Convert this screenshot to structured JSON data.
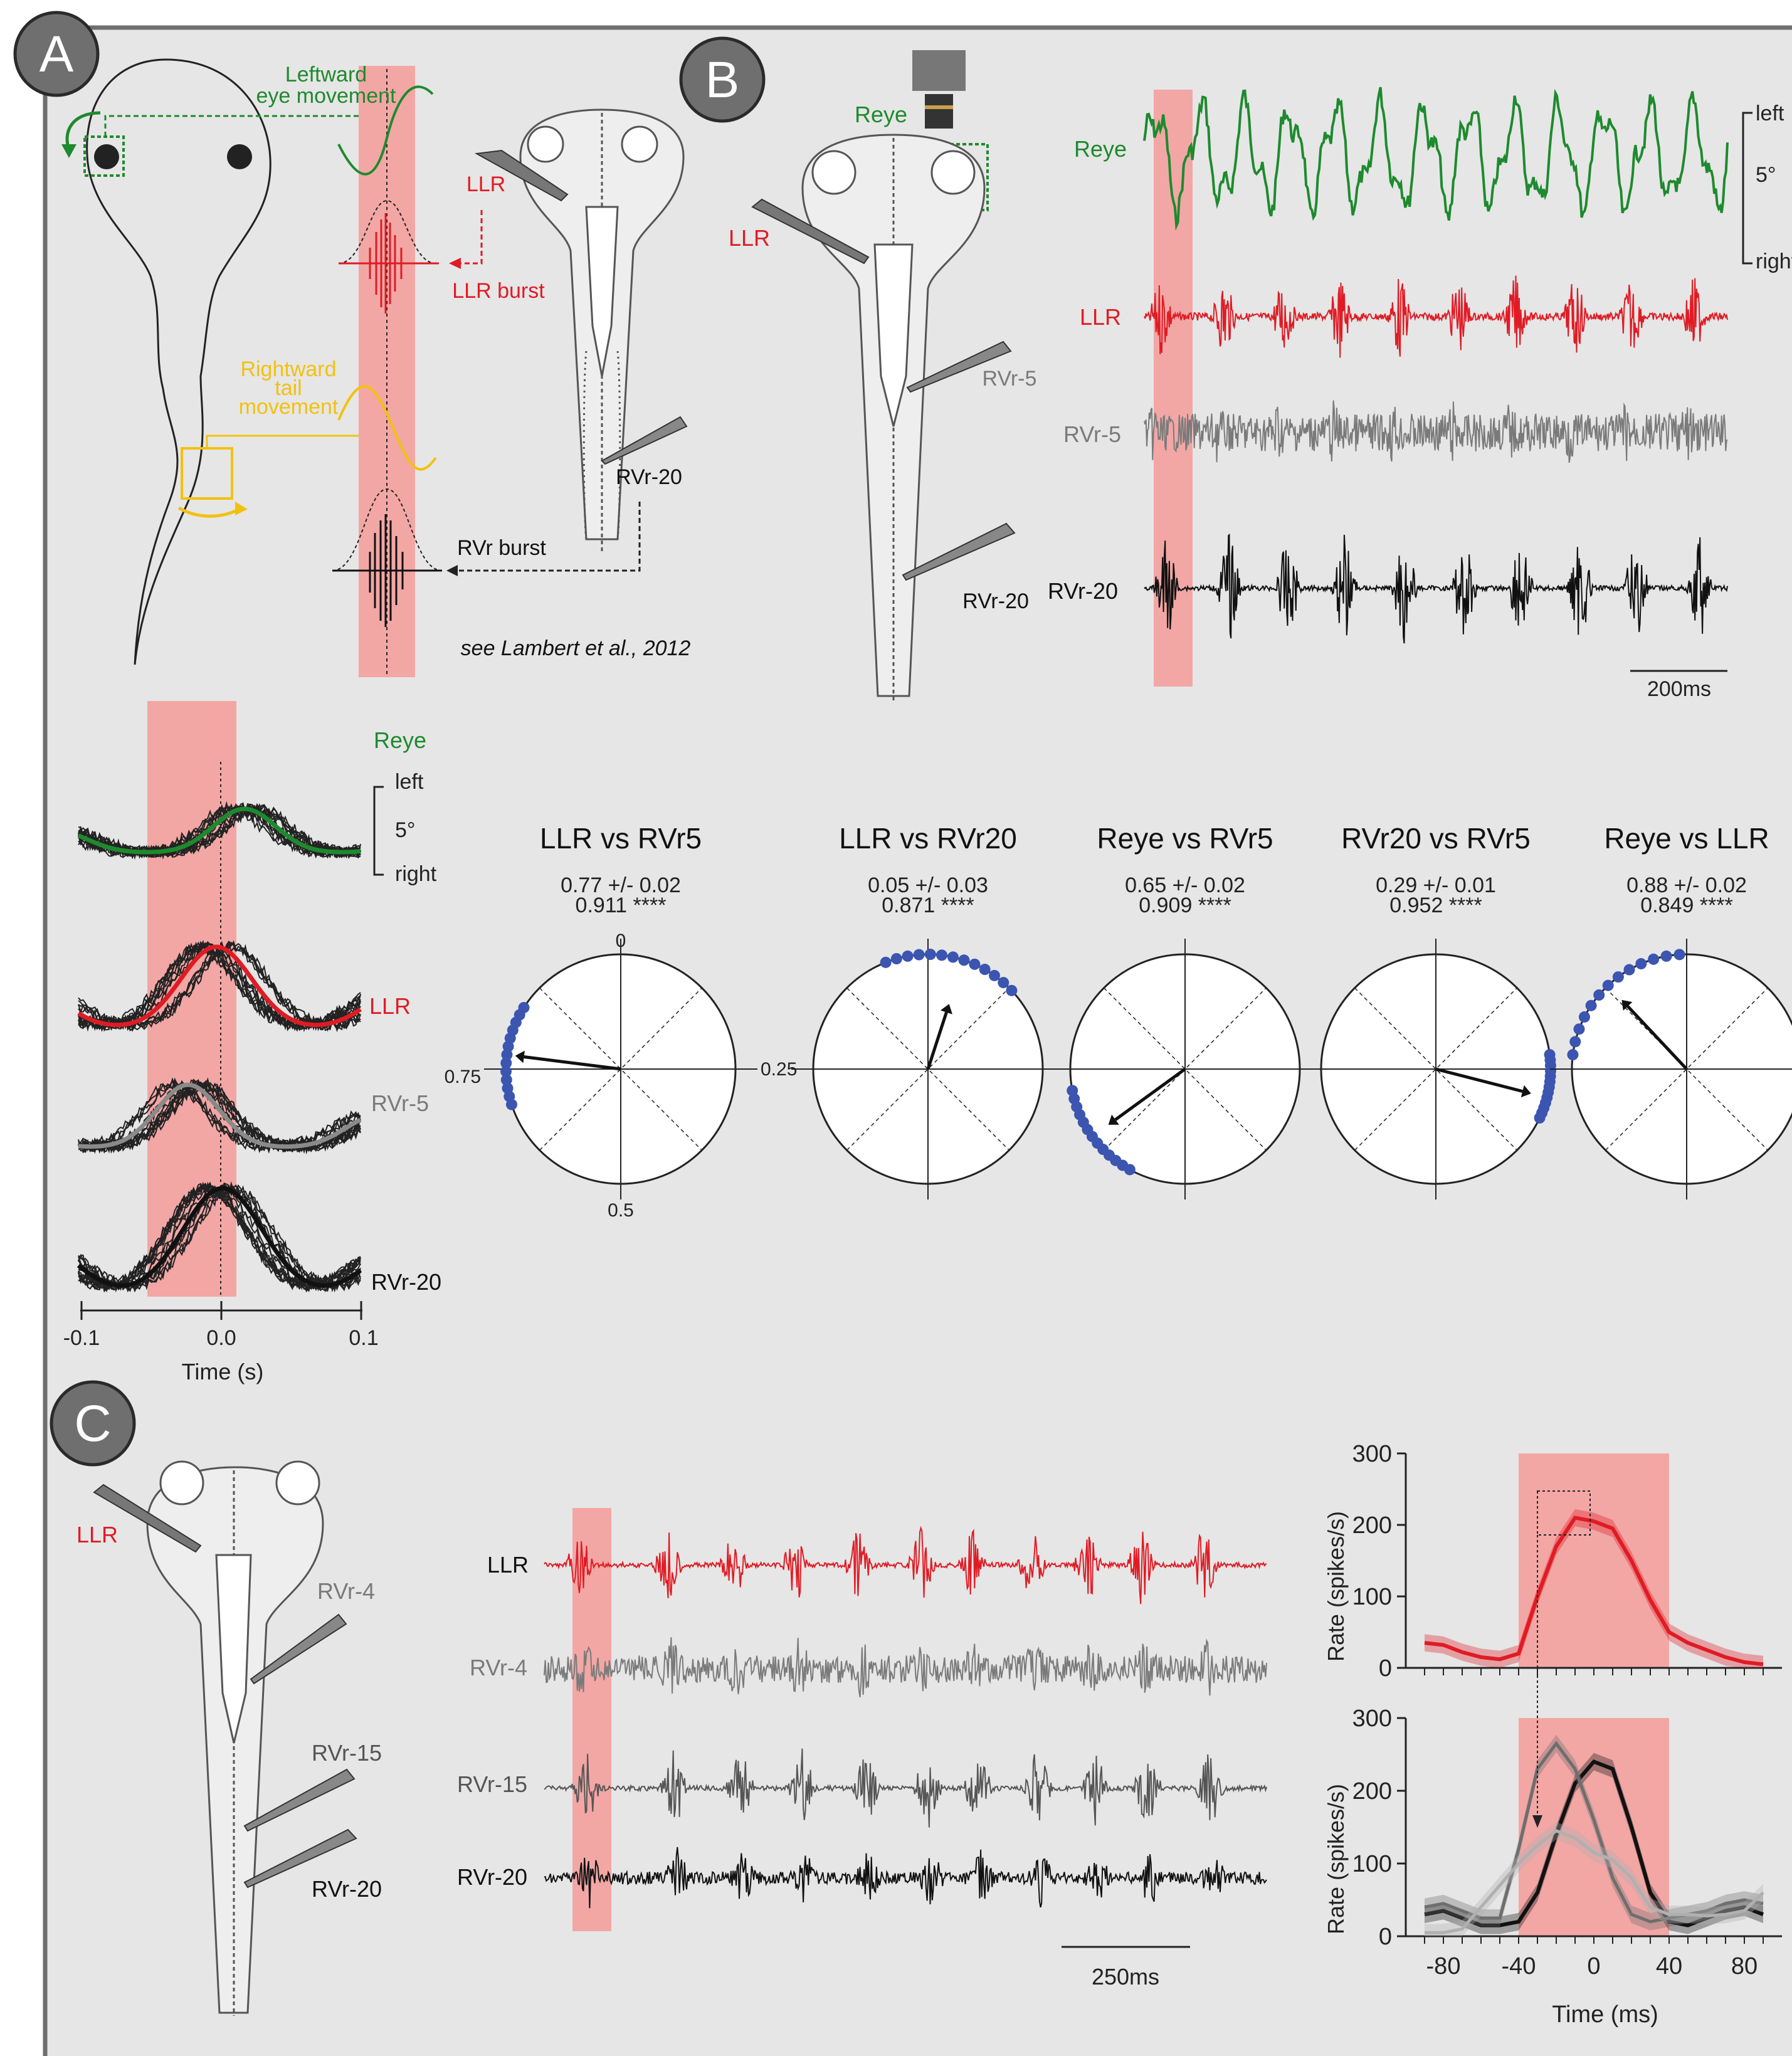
{
  "panels": {
    "a": {
      "label": "A",
      "eye_movement": "Leftward\neye movement",
      "llr": "LLR",
      "llr_burst": "LLR burst",
      "tail_movement": "Rightward\ntail\nmovement",
      "rvr20": "RVr-20",
      "rvr_burst": "RVr burst",
      "citation": "see Lambert et al., 2012"
    },
    "b": {
      "label": "B",
      "reye_cam": "Reye",
      "llr_electrode": "LLR",
      "rvr5_electrode": "RVr-5",
      "rvr20_electrode": "RVr-20",
      "trace_labels": [
        "Reye",
        "LLR",
        "RVr-5",
        "RVr-20"
      ],
      "eye_scale_top": "left",
      "eye_scale_mid": "5°",
      "eye_scale_bottom": "right",
      "scalebar": "200ms"
    },
    "bottom_left": {
      "reye": "Reye",
      "scale_left": "left",
      "scale_5": "5°",
      "scale_right": "right",
      "llr": "LLR",
      "rvr5": "RVr-5",
      "rvr20": "RVr-20",
      "ticks": [
        "-0.1",
        "0.0",
        "0.1"
      ],
      "xlabel": "Time (s)"
    },
    "polar": [
      {
        "title": "LLR vs RVr5",
        "stat1": "0.77 +/- 0.02",
        "stat2": "0.911 ****"
      },
      {
        "title": "LLR vs RVr20",
        "stat1": "0.05 +/- 0.03",
        "stat2": "0.871 ****"
      },
      {
        "title": "Reye vs RVr5",
        "stat1": "0.65 +/- 0.02",
        "stat2": "0.909 ****"
      },
      {
        "title": "RVr20 vs RVr5",
        "stat1": "0.29 +/- 0.01",
        "stat2": "0.952 ****"
      },
      {
        "title": "Reye vs LLR",
        "stat1": "0.88 +/- 0.02",
        "stat2": "0.849 ****"
      }
    ],
    "polar_axis_labels": {
      "top": "0",
      "right": "0.25",
      "bottom": "0.5",
      "left": "0.75"
    },
    "c": {
      "label": "C",
      "llr_electrode": "LLR",
      "rvr4_electrode": "RVr-4",
      "rvr15_electrode": "RVr-15",
      "rvr20_electrode": "RVr-20",
      "trace_labels": [
        "LLR",
        "RVr-4",
        "RVr-15",
        "RVr-20"
      ],
      "scalebar": "250ms",
      "rate_ylabel": "Rate (spikes/s)",
      "time_xlabel": "Time (ms)"
    }
  },
  "colors": {
    "green": "#1e8a2e",
    "red": "#e01b24",
    "yellow": "#f2c10f",
    "gray": "#7a7a7a",
    "shade": "#f2a7a5",
    "dot": "#3b55b0"
  },
  "chart_data": [
    {
      "type": "line",
      "title": "",
      "xlabel": "Time (ms)",
      "ylabel": "Rate (spikes/s)",
      "ylim": [
        0,
        300
      ],
      "yticks": [
        0,
        100,
        200,
        300
      ],
      "x": [
        -90,
        -80,
        -70,
        -60,
        -50,
        -40,
        -30,
        -20,
        -10,
        0,
        10,
        20,
        30,
        40,
        50,
        60,
        70,
        80,
        90
      ],
      "series": [
        {
          "name": "LLR",
          "values": [
            35,
            32,
            22,
            15,
            12,
            20,
            100,
            170,
            210,
            205,
            195,
            150,
            95,
            50,
            35,
            25,
            15,
            8,
            5
          ]
        }
      ],
      "shaded_x_range": [
        -40,
        40
      ]
    },
    {
      "type": "line",
      "title": "",
      "xlabel": "Time (ms)",
      "ylabel": "Rate (spikes/s)",
      "ylim": [
        0,
        300
      ],
      "yticks": [
        0,
        100,
        200,
        300
      ],
      "xticks": [
        -80,
        -40,
        0,
        40,
        80
      ],
      "x": [
        -90,
        -80,
        -70,
        -60,
        -50,
        -40,
        -30,
        -20,
        -10,
        0,
        10,
        20,
        30,
        40,
        50,
        60,
        70,
        80,
        90
      ],
      "series": [
        {
          "name": "RVr-20",
          "values": [
            30,
            35,
            25,
            15,
            15,
            20,
            60,
            140,
            210,
            240,
            230,
            150,
            60,
            20,
            15,
            25,
            35,
            40,
            30
          ]
        },
        {
          "name": "RVr-15",
          "values": [
            40,
            45,
            35,
            25,
            25,
            120,
            230,
            265,
            230,
            160,
            80,
            30,
            20,
            25,
            30,
            35,
            45,
            50,
            45
          ]
        },
        {
          "name": "RVr-4",
          "values": [
            5,
            5,
            10,
            40,
            70,
            100,
            125,
            145,
            135,
            115,
            105,
            80,
            40,
            30,
            30,
            28,
            30,
            35,
            60
          ]
        }
      ],
      "shaded_x_range": [
        -40,
        40
      ]
    }
  ]
}
